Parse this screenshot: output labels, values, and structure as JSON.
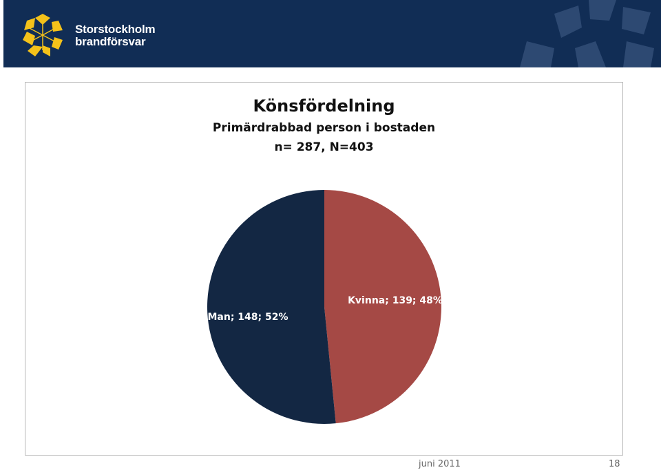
{
  "header": {
    "org_line1": "Storstockholm",
    "org_line2": "brandförsvar",
    "logo_icon": "star-emblem-icon",
    "logo_color": "#f4c21a",
    "background_color": "#112d55"
  },
  "chart_data": {
    "type": "pie",
    "title": "Könsfördelning",
    "subtitle": "Primärdrabbad person i bostaden",
    "subtitle2": "n= 287, N=403",
    "slices": [
      {
        "label": "Kvinna; 139; 48%",
        "category": "Kvinna",
        "value": 139,
        "percent": 48,
        "color": "#a54945"
      },
      {
        "label": "Man; 148; 52%",
        "category": "Man",
        "value": 148,
        "percent": 52,
        "color": "#132743"
      }
    ]
  },
  "footer": {
    "date": "juni 2011",
    "page": "18"
  }
}
